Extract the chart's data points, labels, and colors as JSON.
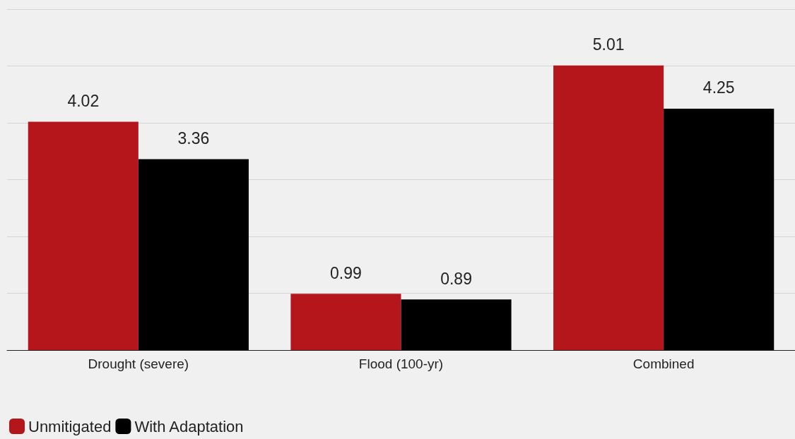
{
  "chart_data": {
    "type": "bar",
    "categories": [
      "Drought (severe)",
      "Flood (100-yr)",
      "Combined"
    ],
    "series": [
      {
        "name": "Unmitigated",
        "color": "#b5161b",
        "values": [
          4.02,
          0.99,
          5.01
        ]
      },
      {
        "name": "With Adaptation",
        "color": "#000000",
        "values": [
          3.36,
          0.89,
          4.25
        ]
      }
    ],
    "ylim": [
      0,
      6
    ],
    "yticks": [
      {
        "value": 0,
        "label": null
      },
      {
        "value": 1,
        "label": null
      },
      {
        "value": 2,
        "label": null
      },
      {
        "value": 3,
        "label": null
      },
      {
        "value": 4,
        "label": null
      },
      {
        "value": 5,
        "label": null
      },
      {
        "value": 6,
        "label": null
      }
    ],
    "grid": "y",
    "tick_labels": "x",
    "data_labels": true,
    "legend": "bottom left"
  }
}
